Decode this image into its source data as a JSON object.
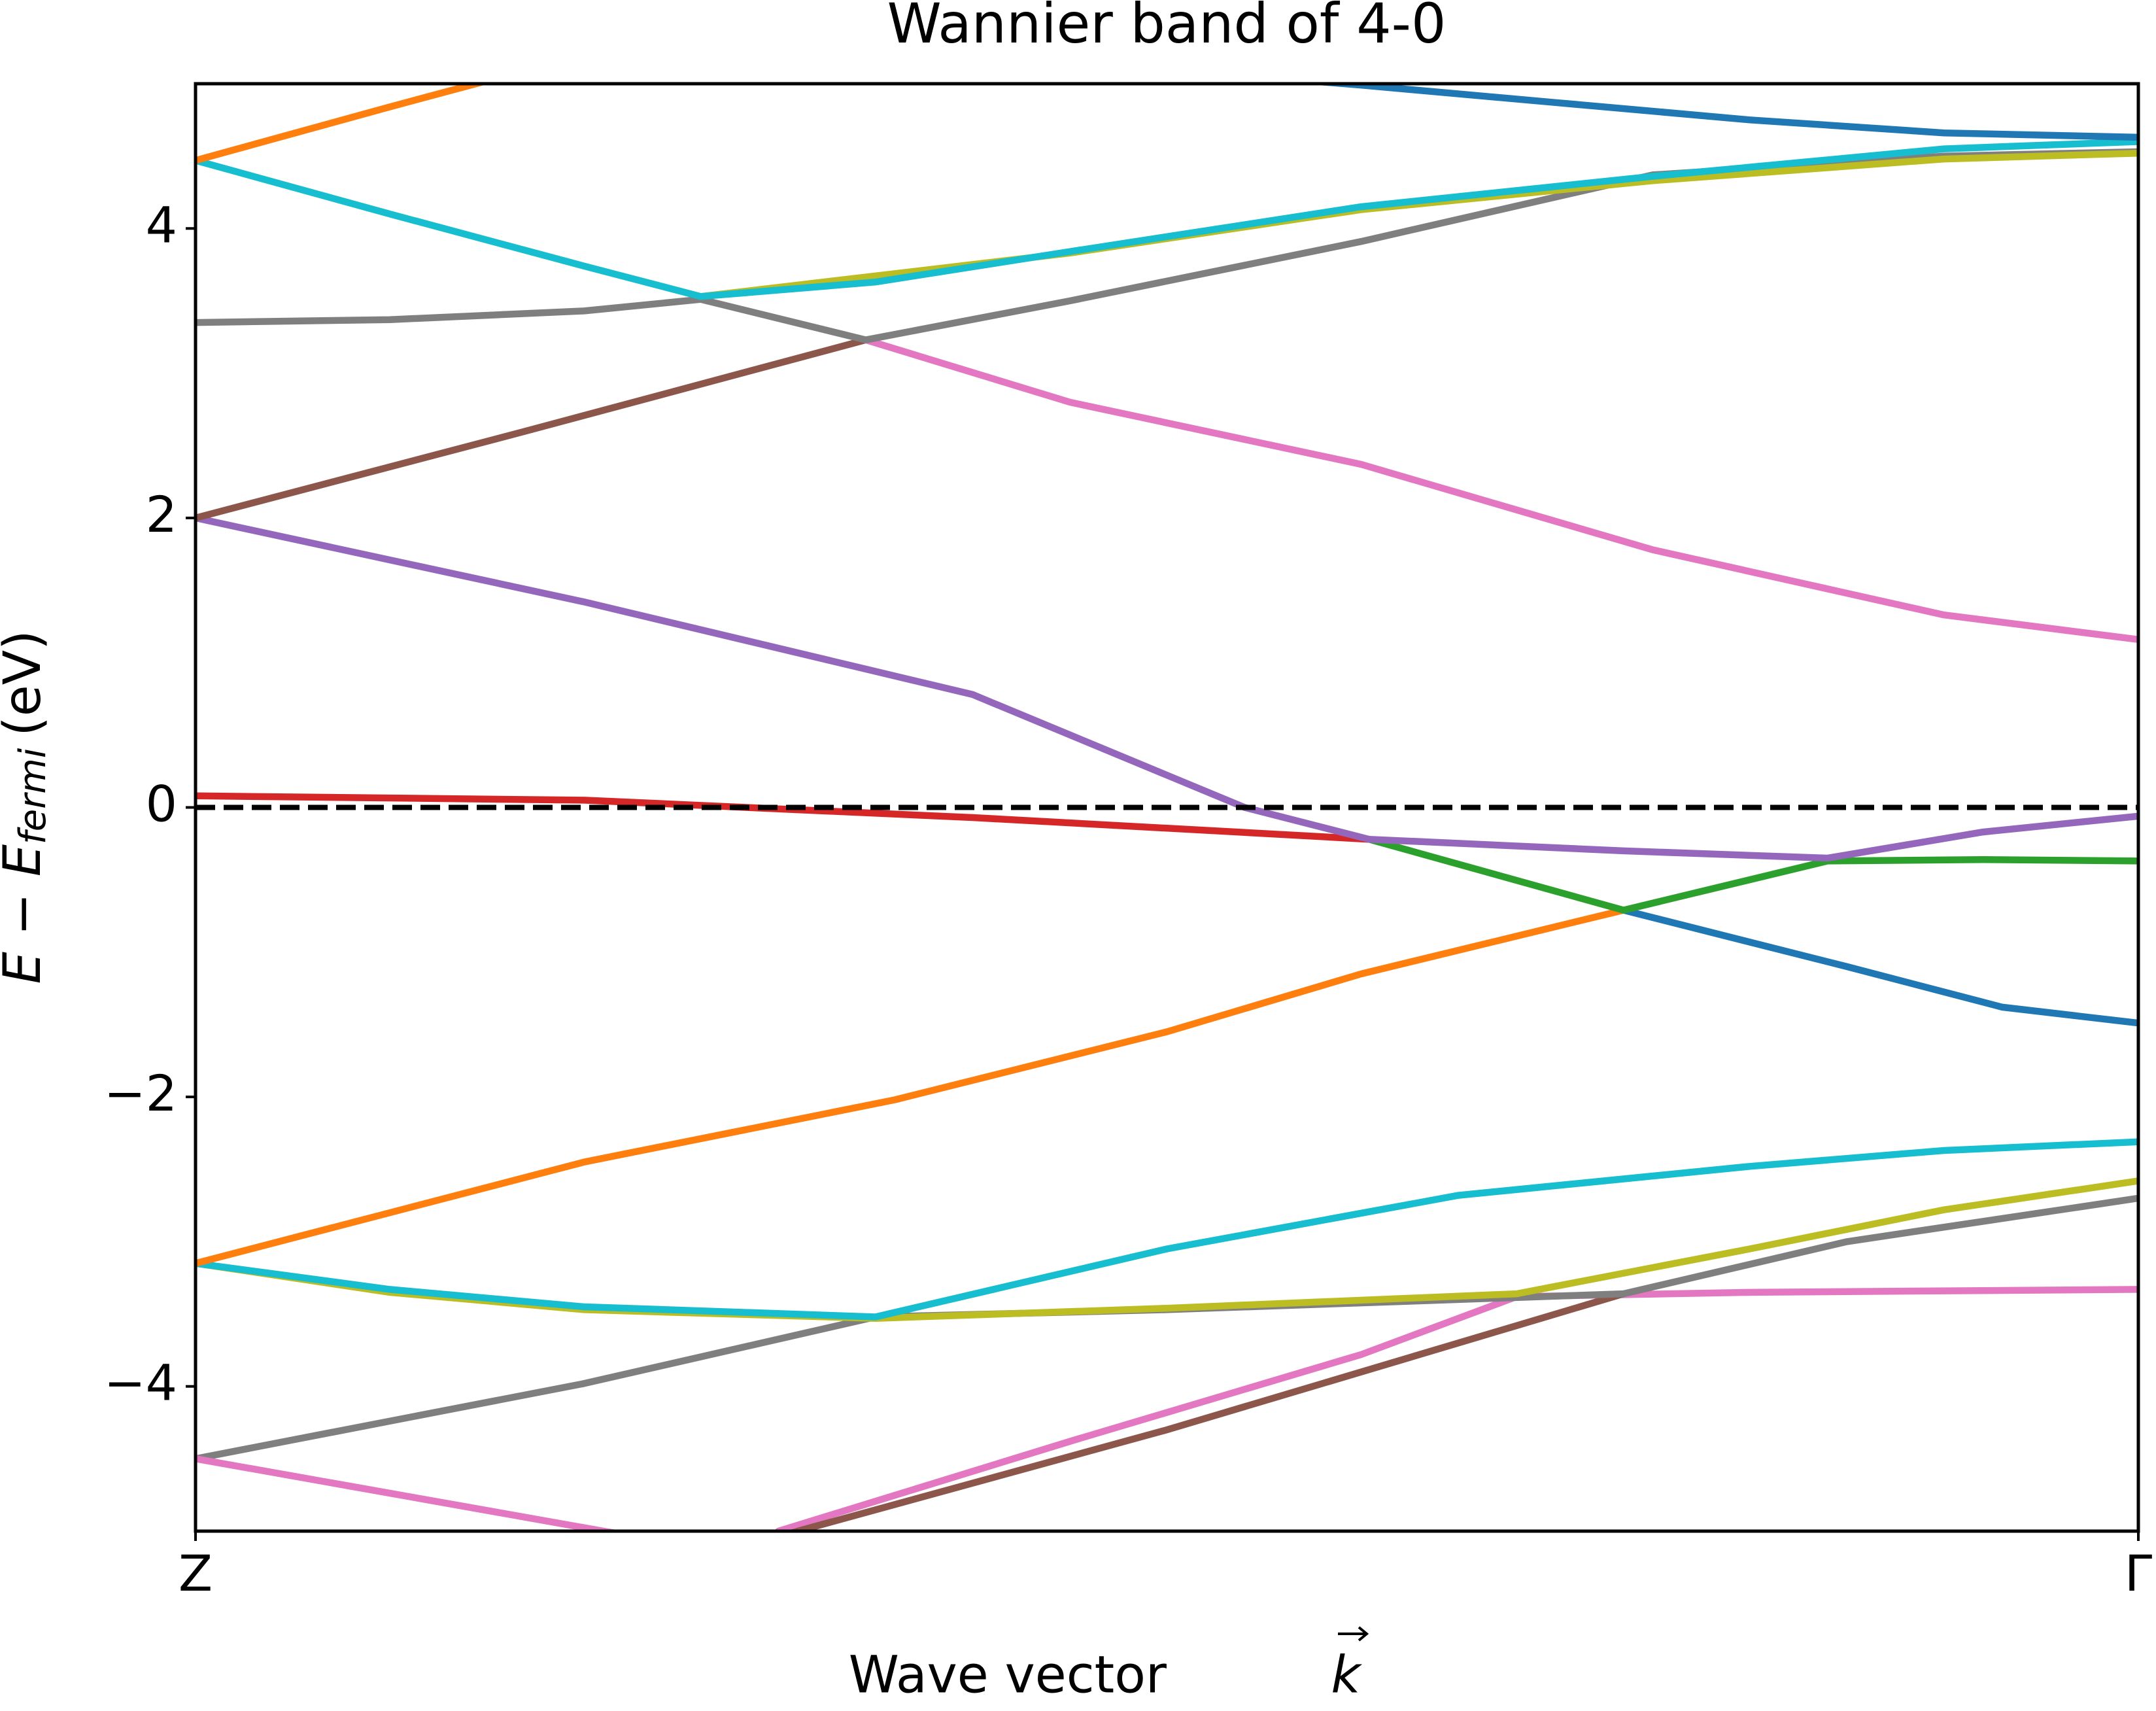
{
  "chart_data": {
    "type": "line",
    "title": "Wannier band of 4-0",
    "xlabel": [
      "Wave vector",
      "k"
    ],
    "ylabel": [
      "E − E",
      "fermi",
      "(eV)"
    ],
    "xlim": [
      0,
      1
    ],
    "ylim": [
      -5,
      5
    ],
    "xticks": [
      {
        "value": 0,
        "label": "Z"
      },
      {
        "value": 1,
        "label": "Γ"
      }
    ],
    "yticks": [
      {
        "value": -4,
        "label": "−4"
      },
      {
        "value": -2,
        "label": "−2"
      },
      0,
      2,
      4
    ],
    "hline": 0,
    "series": [
      {
        "color": "#e377c2",
        "x": [
          0.3,
          0.45,
          0.6,
          0.68,
          0.8,
          1
        ],
        "values": [
          -5.0,
          -4.38,
          -3.78,
          -3.38,
          -3.35,
          -3.33
        ]
      },
      {
        "color": "#8c564b",
        "x": [
          0.28,
          0.31,
          0.5,
          0.735
        ],
        "values": [
          -5.12,
          -5.0,
          -4.3,
          -3.36
        ]
      },
      {
        "color": "#7f7f7f",
        "x": [
          0,
          0.2,
          0.35,
          0.5,
          0.735,
          0.85,
          1
        ],
        "values": [
          -4.5,
          -3.98,
          -3.52,
          -3.47,
          -3.36,
          -3.0,
          -2.7
        ]
      },
      {
        "color": "#bcbd22",
        "x": [
          0,
          0.1,
          0.2,
          0.35,
          0.5,
          0.68,
          0.8,
          0.9,
          1
        ],
        "values": [
          -3.15,
          -3.35,
          -3.47,
          -3.53,
          -3.46,
          -3.36,
          -3.05,
          -2.78,
          -2.58
        ]
      },
      {
        "color": "#17becf",
        "x": [
          0,
          0.1,
          0.2,
          0.35,
          0.5,
          0.65,
          0.8,
          0.9,
          1
        ],
        "values": [
          -3.15,
          -3.33,
          -3.45,
          -3.52,
          -3.05,
          -2.68,
          -2.48,
          -2.37,
          -2.31
        ]
      },
      {
        "color": "#ff7f0e",
        "x": [
          0,
          0.2,
          0.36,
          0.5,
          0.6,
          0.735
        ],
        "values": [
          -3.15,
          -2.45,
          -2.02,
          -1.55,
          -1.15,
          -0.71
        ]
      },
      {
        "color": "#1f77b4",
        "x": [
          0.735,
          0.85,
          0.93,
          1
        ],
        "values": [
          -0.71,
          -1.1,
          -1.38,
          -1.49
        ]
      },
      {
        "color": "#2ca02c",
        "x": [
          0.604,
          0.735,
          0.84,
          0.92,
          1
        ],
        "values": [
          -0.22,
          -0.71,
          -0.37,
          -0.36,
          -0.37
        ]
      },
      {
        "color": "#d62728",
        "x": [
          0,
          0.2,
          0.4,
          0.604
        ],
        "values": [
          0.08,
          0.05,
          -0.07,
          -0.22
        ]
      },
      {
        "color": "#9467bd",
        "x": [
          0,
          0.2,
          0.4,
          0.54,
          0.604,
          0.735,
          0.84,
          0.92,
          1
        ],
        "values": [
          2.0,
          1.42,
          0.78,
          0.0,
          -0.22,
          -0.3,
          -0.35,
          -0.17,
          -0.06
        ]
      },
      {
        "color": "#8c564b",
        "x": [
          0,
          0.17,
          0.345
        ],
        "values": [
          2.0,
          2.6,
          3.23
        ]
      },
      {
        "color": "#e377c2",
        "x": [
          0.345,
          0.45,
          0.6,
          0.75,
          0.9,
          1
        ],
        "values": [
          3.23,
          2.8,
          2.37,
          1.78,
          1.33,
          1.16
        ]
      },
      {
        "color": "#7f7f7f",
        "x": [
          0,
          0.1,
          0.2,
          0.26,
          0.345,
          0.45,
          0.6,
          0.75,
          0.9,
          1
        ],
        "values": [
          3.35,
          3.37,
          3.43,
          3.51,
          3.23,
          3.5,
          3.91,
          4.37,
          4.5,
          4.53
        ]
      },
      {
        "color": "#bcbd22",
        "x": [
          0.26,
          0.45,
          0.6,
          0.75,
          0.9,
          1
        ],
        "values": [
          3.53,
          3.83,
          4.13,
          4.33,
          4.48,
          4.52
        ]
      },
      {
        "color": "#17becf",
        "x": [
          0,
          0.1,
          0.2,
          0.26,
          0.35,
          0.45,
          0.6,
          0.75,
          0.9,
          1
        ],
        "values": [
          4.47,
          4.1,
          3.74,
          3.53,
          3.63,
          3.84,
          4.15,
          4.36,
          4.55,
          4.6
        ]
      },
      {
        "color": "#1f77b4",
        "x": [
          0.5,
          0.6,
          0.7,
          0.8,
          0.9,
          1
        ],
        "values": [
          5.1,
          4.99,
          4.87,
          4.75,
          4.66,
          4.63
        ]
      },
      {
        "color": "#ff7f0e",
        "x": [
          0,
          0.1,
          0.2
        ],
        "values": [
          4.47,
          4.84,
          5.2
        ]
      },
      {
        "color": "#e377c2",
        "x": [
          0,
          0.21,
          0.3
        ],
        "values": [
          -4.5,
          -5.0,
          -5.2
        ]
      }
    ]
  }
}
